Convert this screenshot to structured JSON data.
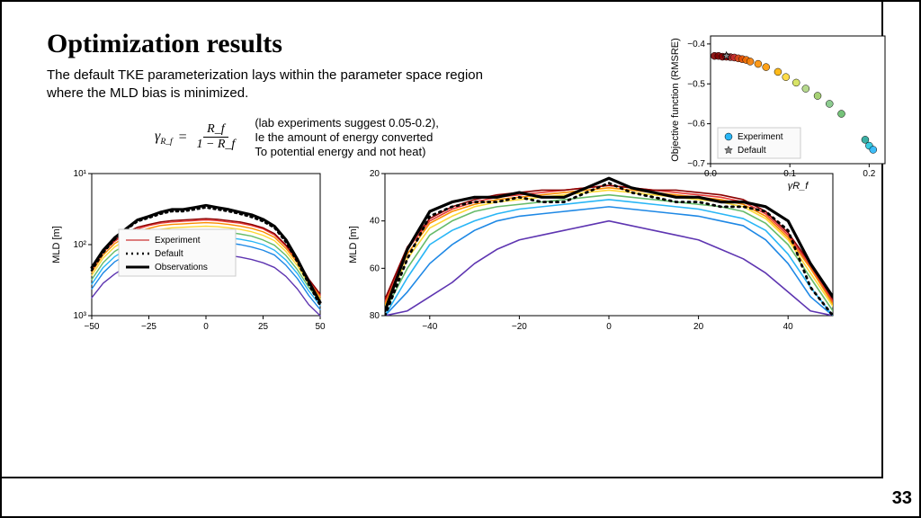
{
  "page_number": "33",
  "title": "Optimization results",
  "subtitle": "The default TKE parameterization lays within the parameter space region where the MLD bias is minimized.",
  "equation": {
    "lhs": "γ",
    "lhs_sub": "R_f",
    "eq": "=",
    "num": "R_f",
    "den": "1 − R_f"
  },
  "equation_note_lines": [
    "(lab experiments suggest 0.05-0.2),",
    "Ie the amount of energy converted",
    "To potential energy and not heat)"
  ],
  "scatter": {
    "type": "scatter",
    "xlabel": "γR_f",
    "ylabel": "Objective function (RMSRE)",
    "xlim": [
      0.0,
      0.22
    ],
    "ylim": [
      -0.7,
      -0.38
    ],
    "xticks": [
      0.0,
      0.1,
      0.2
    ],
    "yticks": [
      -0.7,
      -0.6,
      -0.5,
      -0.4
    ],
    "xtick_labels": [
      "0.0",
      "0.1",
      "0.2"
    ],
    "ytick_labels": [
      "−0.7",
      "−0.6",
      "−0.5",
      "−0.4"
    ],
    "background": "#ffffff",
    "frame_color": "#000000",
    "points": [
      {
        "x": 0.005,
        "y": -0.43,
        "c": "#800000"
      },
      {
        "x": 0.01,
        "y": -0.43,
        "c": "#800000"
      },
      {
        "x": 0.015,
        "y": -0.432,
        "c": "#8b0000"
      },
      {
        "x": 0.02,
        "y": -0.432,
        "c": "#a00000"
      },
      {
        "x": 0.025,
        "y": -0.433,
        "c": "#b22222"
      },
      {
        "x": 0.03,
        "y": -0.434,
        "c": "#c62828"
      },
      {
        "x": 0.035,
        "y": -0.436,
        "c": "#d84315"
      },
      {
        "x": 0.04,
        "y": -0.438,
        "c": "#e65100"
      },
      {
        "x": 0.045,
        "y": -0.44,
        "c": "#ef6c00"
      },
      {
        "x": 0.05,
        "y": -0.444,
        "c": "#f57c00"
      },
      {
        "x": 0.06,
        "y": -0.45,
        "c": "#ff8f00"
      },
      {
        "x": 0.07,
        "y": -0.458,
        "c": "#ff9800"
      },
      {
        "x": 0.085,
        "y": -0.47,
        "c": "#ffb300"
      },
      {
        "x": 0.095,
        "y": -0.483,
        "c": "#fdd835"
      },
      {
        "x": 0.108,
        "y": -0.497,
        "c": "#d4e157"
      },
      {
        "x": 0.12,
        "y": -0.512,
        "c": "#aed581"
      },
      {
        "x": 0.135,
        "y": -0.53,
        "c": "#9ccc65"
      },
      {
        "x": 0.15,
        "y": -0.55,
        "c": "#81c784"
      },
      {
        "x": 0.165,
        "y": -0.575,
        "c": "#66bb6a"
      },
      {
        "x": 0.195,
        "y": -0.64,
        "c": "#26a69a"
      },
      {
        "x": 0.2,
        "y": -0.655,
        "c": "#26c6da"
      },
      {
        "x": 0.205,
        "y": -0.665,
        "c": "#29b6f6"
      }
    ],
    "default_marker": {
      "x": 0.02,
      "y": -0.43,
      "shape": "star",
      "color": "#888888",
      "size": 9
    },
    "legend": {
      "items": [
        {
          "label": "Experiment",
          "marker": "circle",
          "color": "#29b6f6"
        },
        {
          "label": "Default",
          "marker": "star",
          "color": "#888888"
        }
      ]
    }
  },
  "mld_left": {
    "type": "line",
    "ylabel": "MLD [m]",
    "xlim": [
      -50,
      50
    ],
    "ylim_log": [
      1000,
      10
    ],
    "xticks": [
      -50,
      -25,
      0,
      25,
      50
    ],
    "yticks": [
      10,
      100,
      1000
    ],
    "ytick_labels": [
      "10¹",
      "10²",
      "10³"
    ],
    "legend": {
      "items": [
        {
          "label": "Experiment",
          "style": "solid",
          "color": "#cc3333",
          "width": 1.2
        },
        {
          "label": "Default",
          "style": "dotted",
          "color": "#000000",
          "width": 2.5
        },
        {
          "label": "Observations",
          "style": "solid",
          "color": "#000000",
          "width": 3
        }
      ]
    },
    "series_x": [
      -50,
      -45,
      -40,
      -35,
      -30,
      -25,
      -20,
      -15,
      -10,
      -5,
      0,
      5,
      10,
      15,
      20,
      25,
      30,
      35,
      40,
      45,
      50
    ],
    "observations": [
      210,
      120,
      80,
      60,
      45,
      40,
      35,
      32,
      32,
      30,
      28,
      30,
      32,
      35,
      38,
      44,
      55,
      85,
      160,
      330,
      650
    ],
    "default": [
      230,
      130,
      85,
      62,
      47,
      42,
      37,
      34,
      34,
      32,
      30,
      32,
      34,
      37,
      41,
      47,
      58,
      92,
      175,
      360,
      720
    ],
    "experiment_lines": [
      {
        "color": "#5e35b1",
        "y": [
          560,
          350,
          260,
          205,
          175,
          160,
          148,
          142,
          140,
          138,
          135,
          138,
          142,
          150,
          162,
          180,
          210,
          280,
          420,
          700,
          1000
        ]
      },
      {
        "color": "#1e88e5",
        "y": [
          420,
          250,
          175,
          140,
          120,
          108,
          100,
          96,
          94,
          92,
          90,
          92,
          95,
          100,
          108,
          120,
          140,
          195,
          300,
          520,
          820
        ]
      },
      {
        "color": "#29b6f6",
        "y": [
          360,
          210,
          148,
          118,
          100,
          90,
          84,
          80,
          78,
          77,
          75,
          77,
          80,
          84,
          90,
          100,
          120,
          165,
          255,
          450,
          720
        ]
      },
      {
        "color": "#66bb6a",
        "y": [
          310,
          180,
          125,
          100,
          85,
          77,
          71,
          68,
          66,
          65,
          64,
          65,
          67,
          71,
          76,
          86,
          102,
          142,
          225,
          400,
          640
        ]
      },
      {
        "color": "#fdd835",
        "y": [
          270,
          155,
          108,
          86,
          73,
          66,
          61,
          58,
          57,
          56,
          55,
          56,
          58,
          61,
          66,
          74,
          88,
          125,
          198,
          360,
          580
        ]
      },
      {
        "color": "#fb8c00",
        "y": [
          245,
          140,
          97,
          77,
          65,
          59,
          54,
          52,
          51,
          50,
          49,
          50,
          52,
          55,
          59,
          66,
          79,
          113,
          180,
          335,
          540
        ]
      },
      {
        "color": "#e53935",
        "y": [
          228,
          128,
          90,
          71,
          60,
          54,
          50,
          48,
          47,
          46,
          45,
          46,
          48,
          50,
          54,
          60,
          73,
          105,
          168,
          315,
          510
        ]
      },
      {
        "color": "#8b0000",
        "y": [
          218,
          122,
          86,
          68,
          57,
          52,
          48,
          46,
          45,
          44,
          43,
          44,
          46,
          48,
          52,
          58,
          70,
          101,
          162,
          305,
          495
        ]
      }
    ]
  },
  "mld_right": {
    "type": "line",
    "ylabel": "MLD [m]",
    "xlim": [
      -50,
      50
    ],
    "ylim": [
      80,
      20
    ],
    "xticks": [
      -40,
      -20,
      0,
      20,
      40
    ],
    "yticks": [
      20,
      40,
      60,
      80
    ],
    "series_x": [
      -50,
      -45,
      -40,
      -35,
      -30,
      -25,
      -20,
      -15,
      -10,
      -5,
      0,
      5,
      10,
      15,
      20,
      25,
      30,
      35,
      40,
      45,
      50
    ],
    "observations": [
      78,
      52,
      36,
      32,
      30,
      30,
      28,
      30,
      30,
      26,
      22,
      26,
      28,
      30,
      30,
      32,
      32,
      34,
      40,
      58,
      72
    ],
    "default": [
      80,
      56,
      38,
      34,
      32,
      32,
      30,
      32,
      32,
      28,
      24,
      28,
      30,
      32,
      32,
      34,
      34,
      36,
      44,
      68,
      80
    ],
    "experiment_lines": [
      {
        "color": "#5e35b1",
        "y": [
          80,
          78,
          72,
          66,
          58,
          52,
          48,
          46,
          44,
          42,
          40,
          42,
          44,
          46,
          48,
          52,
          56,
          62,
          70,
          78,
          80
        ]
      },
      {
        "color": "#1e88e5",
        "y": [
          80,
          70,
          58,
          50,
          44,
          40,
          38,
          37,
          36,
          35,
          34,
          35,
          36,
          37,
          38,
          40,
          42,
          48,
          58,
          72,
          80
        ]
      },
      {
        "color": "#29b6f6",
        "y": [
          80,
          64,
          50,
          44,
          40,
          37,
          35,
          34,
          33,
          32,
          31,
          32,
          33,
          34,
          35,
          37,
          39,
          44,
          54,
          68,
          80
        ]
      },
      {
        "color": "#66bb6a",
        "y": [
          78,
          60,
          46,
          40,
          36,
          34,
          33,
          32,
          31,
          30,
          29,
          30,
          31,
          32,
          33,
          34,
          36,
          41,
          50,
          64,
          78
        ]
      },
      {
        "color": "#fdd835",
        "y": [
          76,
          56,
          43,
          38,
          34,
          32,
          31,
          30,
          29,
          28,
          27,
          28,
          29,
          30,
          31,
          32,
          34,
          39,
          48,
          62,
          76
        ]
      },
      {
        "color": "#fb8c00",
        "y": [
          75,
          54,
          41,
          36,
          33,
          31,
          30,
          29,
          28,
          27,
          26,
          27,
          28,
          29,
          30,
          31,
          33,
          38,
          47,
          60,
          75
        ]
      },
      {
        "color": "#e53935",
        "y": [
          74,
          52,
          40,
          35,
          32,
          30,
          29,
          28,
          27,
          26,
          25,
          26,
          27,
          28,
          29,
          30,
          32,
          37,
          46,
          59,
          74
        ]
      },
      {
        "color": "#8b0000",
        "y": [
          73,
          51,
          39,
          34,
          31,
          29,
          28,
          27,
          27,
          26,
          25,
          26,
          27,
          27,
          28,
          29,
          31,
          36,
          45,
          58,
          73
        ]
      }
    ]
  }
}
